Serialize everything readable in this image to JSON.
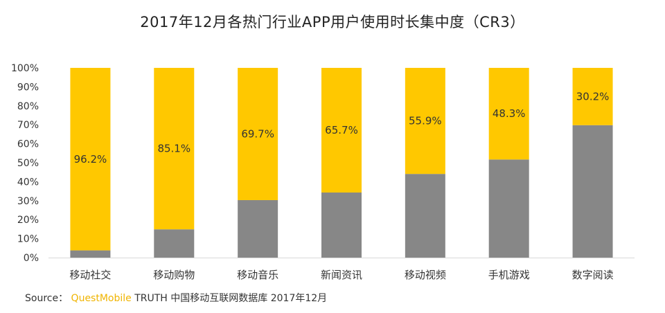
{
  "chart_data": {
    "type": "bar",
    "stacked": true,
    "percent_stacked": true,
    "title": "2017年12月各热门行业APP用户使用时长集中度（CR3）",
    "categories": [
      "移动社交",
      "移动购物",
      "移动音乐",
      "新闻资讯",
      "移动视频",
      "手机游戏",
      "数字阅读"
    ],
    "series": [
      {
        "values": [
          3.8,
          14.9,
          30.3,
          34.3,
          44.1,
          51.7,
          69.8
        ]
      },
      {
        "values": [
          96.2,
          85.1,
          69.7,
          65.7,
          55.9,
          48.3,
          30.2
        ]
      }
    ],
    "data_labels": [
      "96.2%",
      "85.1%",
      "69.7%",
      "65.7%",
      "55.9%",
      "48.3%",
      "30.2%"
    ],
    "y_ticks": [
      "0%",
      "10%",
      "20%",
      "30%",
      "40%",
      "50%",
      "60%",
      "70%",
      "80%",
      "90%",
      "100%"
    ],
    "ylim": [
      0,
      100
    ],
    "grid": false,
    "legend": "none",
    "colors": {
      "bottom": "#878787",
      "top": "#ffc800",
      "axis": "#d9d9d9",
      "text": "#333333",
      "brand": "#f0b400"
    }
  },
  "source": {
    "prefix": "Source：",
    "brand": "QuestMobile",
    "suffix": " TRUTH 中国移动互联网数据库 2017年12月"
  }
}
